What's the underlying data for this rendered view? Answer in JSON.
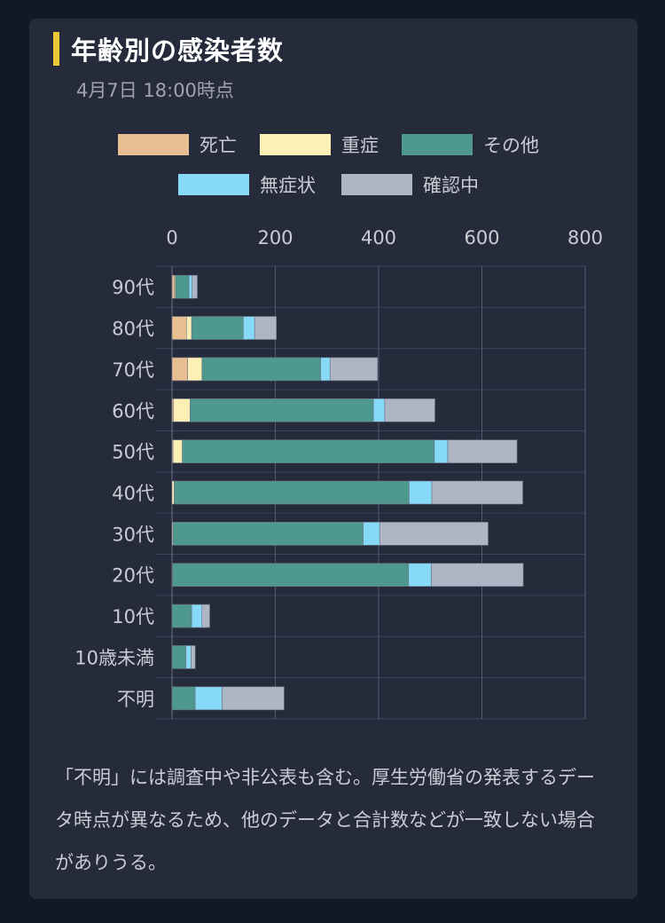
{
  "title": "年齢別の感染者数",
  "subtitle": "4月7日 18:00時点",
  "note": "「不明」には調査中や非公表も含む。厚生労働省の発表するデータ時点が異なるため、他のデータと合計数などが一致しない場合がありうる。",
  "colors": {
    "死亡": "#e8be93",
    "重症": "#fdf0b5",
    "その他": "#4f9890",
    "無症状": "#86daf8",
    "確認中": "#aeb6c6"
  },
  "chart_data": {
    "type": "bar",
    "orientation": "horizontal",
    "stacked": true,
    "title": "年齢別の感染者数",
    "categories": [
      "90代",
      "80代",
      "70代",
      "60代",
      "50代",
      "40代",
      "30代",
      "20代",
      "10代",
      "10歳未満",
      "不明"
    ],
    "series": [
      {
        "name": "死亡",
        "values": [
          5,
          28,
          30,
          3,
          2,
          0,
          0,
          0,
          0,
          0,
          0
        ]
      },
      {
        "name": "重症",
        "values": [
          2,
          10,
          28,
          32,
          18,
          4,
          2,
          1,
          0,
          0,
          0
        ]
      },
      {
        "name": "その他",
        "values": [
          26,
          100,
          230,
          355,
          488,
          455,
          368,
          457,
          38,
          27,
          45
        ]
      },
      {
        "name": "無症状",
        "values": [
          6,
          22,
          18,
          22,
          26,
          44,
          32,
          44,
          20,
          10,
          52
        ]
      },
      {
        "name": "確認中",
        "values": [
          10,
          42,
          92,
          97,
          134,
          176,
          210,
          178,
          15,
          8,
          120
        ]
      }
    ],
    "xlim": [
      0,
      800
    ],
    "xticks": [
      0,
      200,
      400,
      600,
      800
    ],
    "grid": true,
    "legend_position": "top"
  }
}
